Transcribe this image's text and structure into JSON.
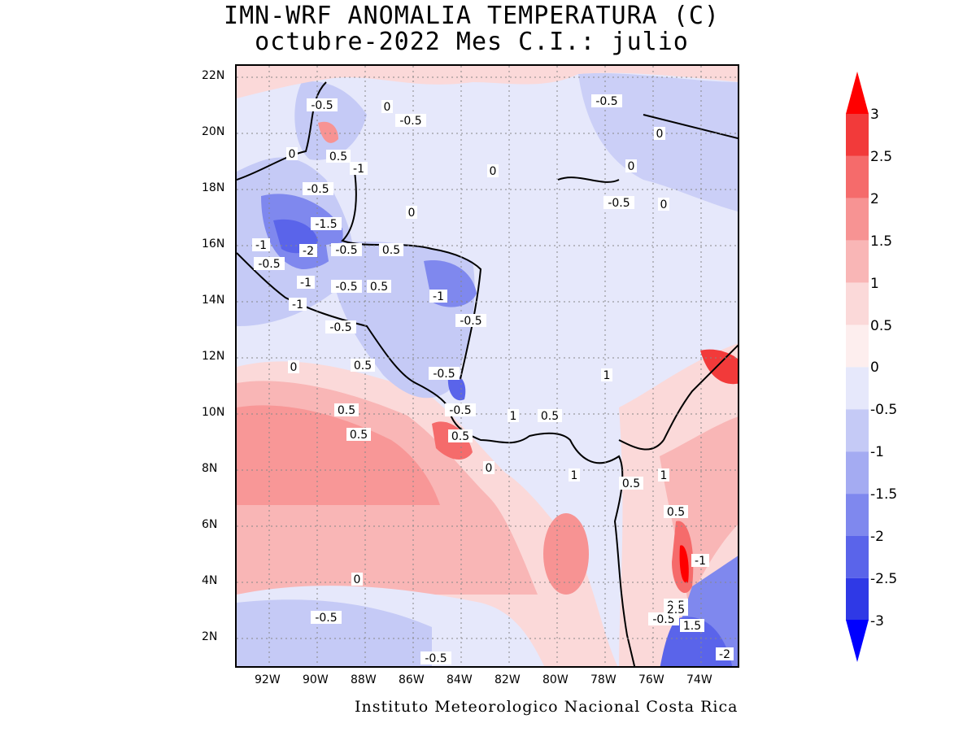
{
  "titles": {
    "line1": "IMN-WRF  ANOMALIA TEMPERATURA (C)",
    "line2": "octubre-2022 Mes C.I.: julio"
  },
  "credit": "Instituto Meteorologico Nacional Costa Rica",
  "map": {
    "lat_labels": [
      "22N",
      "20N",
      "18N",
      "16N",
      "14N",
      "12N",
      "10N",
      "8N",
      "6N",
      "4N",
      "2N"
    ],
    "lon_labels": [
      "92W",
      "90W",
      "88W",
      "86W",
      "84W",
      "82W",
      "80W",
      "78W",
      "76W",
      "74W"
    ],
    "contour_labels": [
      "-0.5",
      "0",
      "-0.5",
      "0",
      "0",
      "-0.5",
      "0",
      "0.5",
      "-1",
      "-0.5",
      "-1.5",
      "0",
      "-1",
      "-2",
      "-0.5",
      "0.5",
      "-0.5",
      "-1",
      "-0.5",
      "0.5",
      "-1",
      "-0.5",
      "-0.5",
      "0",
      "0",
      "-0.5",
      "0.5",
      "1",
      "-1",
      "0",
      "0.5",
      "-0.5",
      "-0.5",
      "0.5",
      "0.5",
      "0.5",
      "1",
      "0.5",
      "0",
      "1",
      "1",
      "0.5",
      "-1",
      "1.5",
      "-2",
      "-0.5",
      "0",
      "-0.5",
      "-0.5",
      "0.5",
      "2.5"
    ]
  },
  "colorbar": {
    "labels": [
      "3",
      "2.5",
      "2",
      "1.5",
      "1",
      "0.5",
      "0",
      "-0.5",
      "-1",
      "-1.5",
      "-2",
      "-2.5",
      "-3"
    ],
    "colors": [
      "#ff0000",
      "#f23a3a",
      "#f56b6b",
      "#f79393",
      "#f9b6b6",
      "#fbd9d9",
      "#fdeeee",
      "#e6e8fb",
      "#c5caf6",
      "#a4abf2",
      "#7f88ee",
      "#5a64ea",
      "#2f39e6",
      "#0000ff"
    ]
  }
}
